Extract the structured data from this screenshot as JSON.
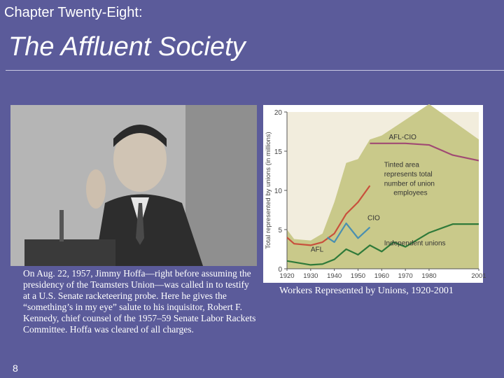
{
  "header": {
    "chapter": "Chapter Twenty-Eight:",
    "title": "The Affluent Society"
  },
  "photo": {
    "caption": "On Aug. 22, 1957, Jimmy Hoffa—right before assuming the presidency of the Teamsters Union—was called in to testify at a U.S. Senate racketeering probe. Here he gives the “something’s in my eye” salute to his inquisitor, Robert F. Kennedy, chief counsel of the 1957–59 Senate Labor Rackets Committee. Hoffa was cleared of all charges."
  },
  "page_number": "8",
  "chart_caption": "Workers Represented by Unions, 1920-2001",
  "colors": {
    "background": "#5b5b9a",
    "tinted_area": "#c9c98a",
    "afl_cio": "#a04a73",
    "cio": "#4a8fb0",
    "afl": "#c8503c",
    "independent": "#2f7a3a"
  },
  "chart_data": {
    "type": "area",
    "ylabel": "Total represented by unions (in millions)",
    "xlim": [
      1920,
      2001
    ],
    "ylim": [
      0,
      20
    ],
    "xticks": [
      1920,
      1930,
      1940,
      1950,
      1960,
      1970,
      1980,
      2001
    ],
    "yticks": [
      0,
      5,
      10,
      15,
      20
    ],
    "area": {
      "x": [
        1920,
        1923,
        1930,
        1935,
        1940,
        1945,
        1950,
        1955,
        1960,
        1970,
        1980,
        2001
      ],
      "y": [
        5.0,
        3.8,
        3.6,
        4.5,
        8.5,
        13.5,
        14.0,
        16.5,
        17.0,
        19.0,
        21.0,
        16.5
      ]
    },
    "annotations": [
      {
        "text": "AFL-CIO",
        "x": 1963,
        "y": 16.5
      },
      {
        "text": "Tinted area",
        "x": 1961,
        "y": 13.0
      },
      {
        "text": "represents total",
        "x": 1961,
        "y": 11.8
      },
      {
        "text": "number of union",
        "x": 1961,
        "y": 10.6
      },
      {
        "text": "employees",
        "x": 1965,
        "y": 9.4
      },
      {
        "text": "CIO",
        "x": 1954,
        "y": 6.2
      },
      {
        "text": "AFL",
        "x": 1930,
        "y": 2.2
      },
      {
        "text": "Independent unions",
        "x": 1961,
        "y": 3.0
      }
    ],
    "series": [
      {
        "name": "AFL-CIO",
        "color": "#a04a73",
        "x": [
          1955,
          1960,
          1970,
          1980,
          1990,
          2001
        ],
        "y": [
          16.0,
          16.0,
          16.0,
          15.8,
          14.5,
          13.8
        ]
      },
      {
        "name": "AFL",
        "color": "#c8503c",
        "x": [
          1920,
          1923,
          1930,
          1935,
          1940,
          1945,
          1950,
          1955
        ],
        "y": [
          4.0,
          3.2,
          3.0,
          3.4,
          4.5,
          7.0,
          8.5,
          10.6
        ]
      },
      {
        "name": "CIO",
        "color": "#4a8fb0",
        "x": [
          1937,
          1940,
          1945,
          1950,
          1955
        ],
        "y": [
          4.0,
          3.4,
          5.8,
          3.9,
          5.3
        ]
      },
      {
        "name": "Independent unions",
        "color": "#2f7a3a",
        "x": [
          1920,
          1930,
          1935,
          1940,
          1945,
          1950,
          1955,
          1960,
          1965,
          1970,
          1975,
          1980,
          1990,
          2001
        ],
        "y": [
          1.0,
          0.5,
          0.6,
          1.2,
          2.5,
          1.8,
          3.0,
          2.2,
          3.4,
          2.8,
          3.7,
          4.6,
          5.7,
          5.7
        ]
      }
    ]
  }
}
